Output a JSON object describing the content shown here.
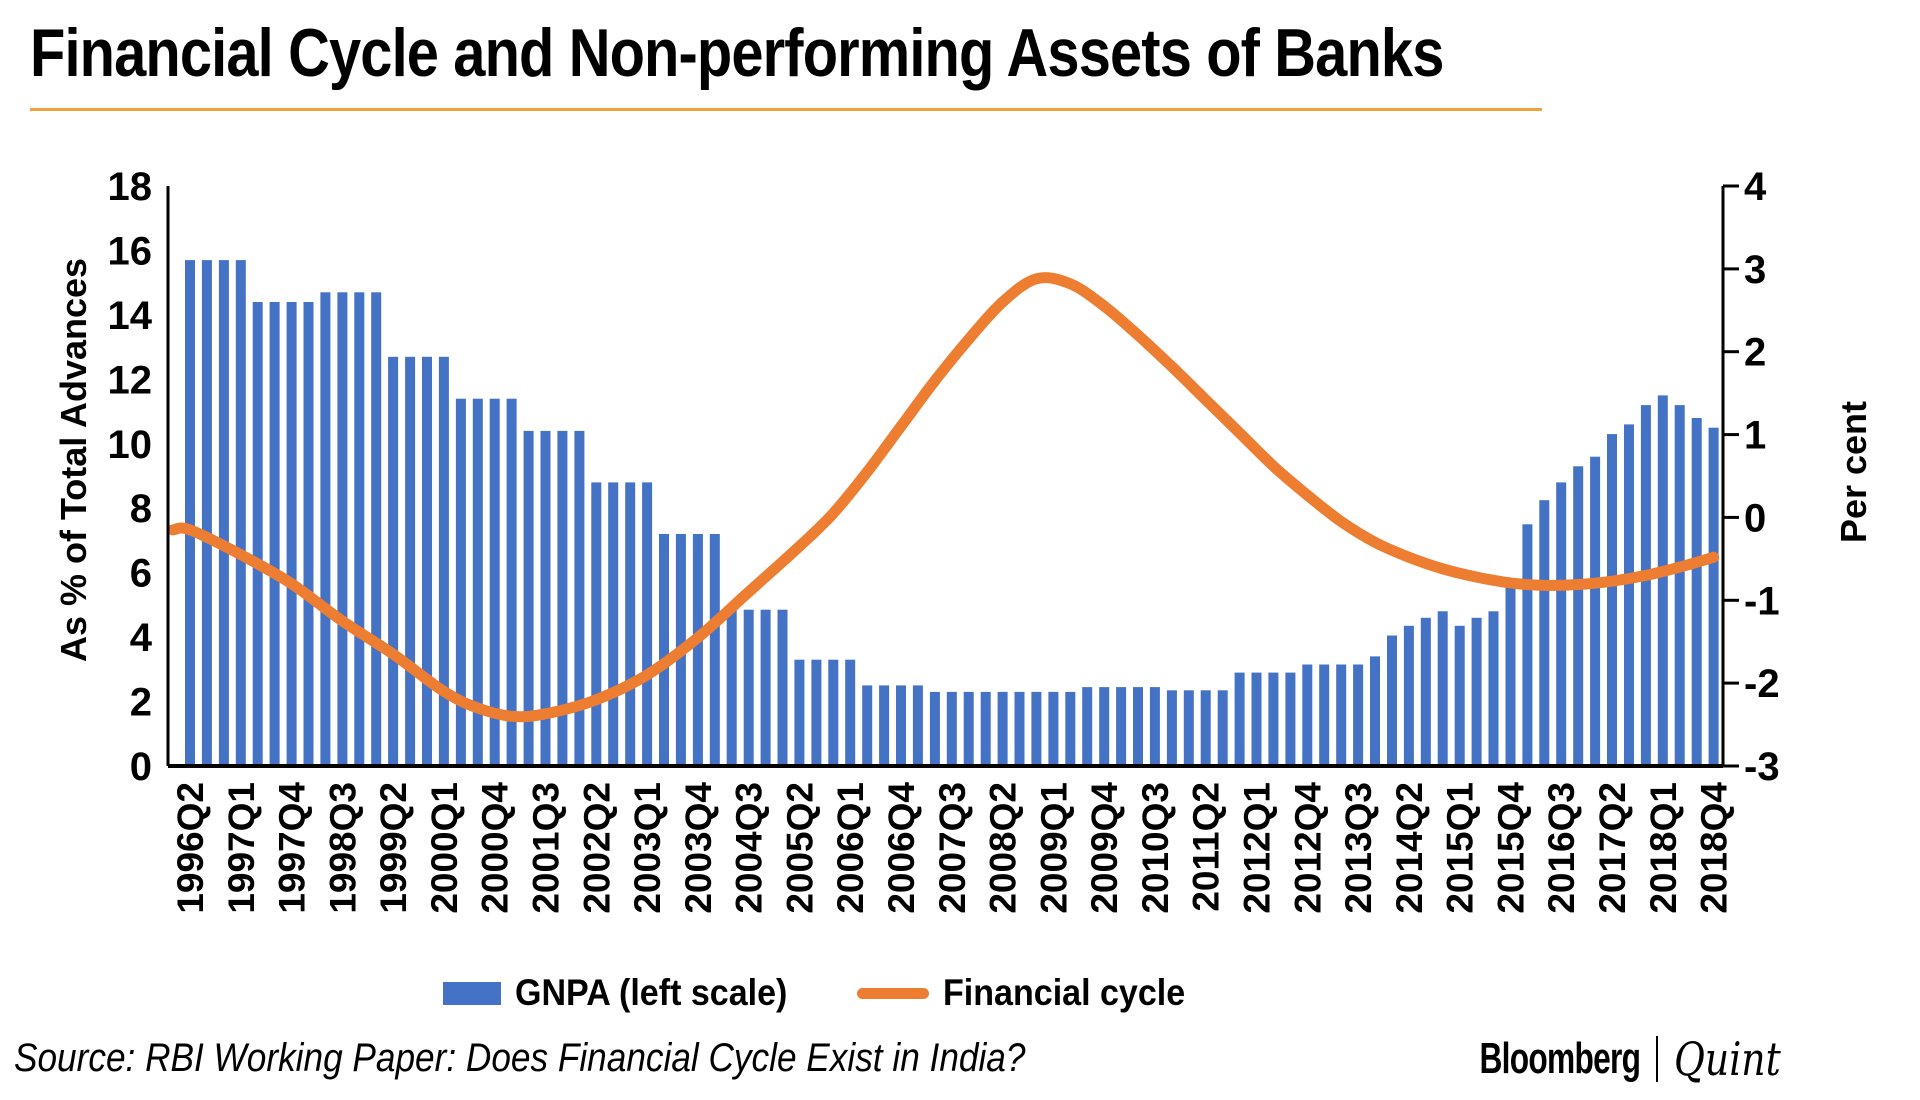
{
  "title": "Financial Cycle and Non-performing Assets of Banks",
  "source": "Source: RBI Working Paper: Does Financial Cycle Exist in India?",
  "branding": {
    "bloomberg": "Bloomberg",
    "quint": "Quint"
  },
  "colors": {
    "bar": "#4472C4",
    "line": "#ED7D31",
    "title_rule": "#F2A43C",
    "axis": "#000000",
    "text": "#000000"
  },
  "legend": [
    {
      "label": "GNPA (left scale)",
      "type": "bar"
    },
    {
      "label": "Financial cycle",
      "type": "line"
    }
  ],
  "chart_data": {
    "type": "bar+line",
    "x_start": "1996Q2",
    "x_tick_labels": [
      "1996Q2",
      "1997Q1",
      "1997Q4",
      "1998Q3",
      "1999Q2",
      "2000Q1",
      "2000Q4",
      "2001Q3",
      "2002Q2",
      "2003Q1",
      "2003Q4",
      "2004Q3",
      "2005Q2",
      "2006Q1",
      "2006Q4",
      "2007Q3",
      "2008Q2",
      "2009Q1",
      "2009Q4",
      "2010Q3",
      "2011Q2",
      "2012Q1",
      "2012Q4",
      "2013Q3",
      "2014Q2",
      "2015Q1",
      "2015Q4",
      "2016Q3",
      "2017Q2",
      "2018Q1",
      "2018Q4"
    ],
    "x_label_every_n_bars": 3,
    "left_axis": {
      "title": "As % of Total Advances",
      "min": 0,
      "max": 18,
      "ticks": [
        0,
        2,
        4,
        6,
        8,
        10,
        12,
        14,
        16,
        18
      ]
    },
    "right_axis": {
      "title": "Per cent",
      "min": -3,
      "max": 4,
      "ticks": [
        4,
        3,
        2,
        1,
        0,
        -1,
        -2,
        -3
      ]
    },
    "grid": false,
    "legend_position": "bottom",
    "series": [
      {
        "name": "GNPA (left scale)",
        "type": "bar",
        "axis": "left",
        "values": [
          15.7,
          15.7,
          15.7,
          15.7,
          14.4,
          14.4,
          14.4,
          14.4,
          14.7,
          14.7,
          14.7,
          14.7,
          12.7,
          12.7,
          12.7,
          12.7,
          11.4,
          11.4,
          11.4,
          11.4,
          10.4,
          10.4,
          10.4,
          10.4,
          8.8,
          8.8,
          8.8,
          8.8,
          7.2,
          7.2,
          7.2,
          7.2,
          4.85,
          4.85,
          4.85,
          4.85,
          3.3,
          3.3,
          3.3,
          3.3,
          2.5,
          2.5,
          2.5,
          2.5,
          2.3,
          2.3,
          2.3,
          2.3,
          2.3,
          2.3,
          2.3,
          2.3,
          2.3,
          2.45,
          2.45,
          2.45,
          2.45,
          2.45,
          2.35,
          2.35,
          2.35,
          2.35,
          2.9,
          2.9,
          2.9,
          2.9,
          3.15,
          3.15,
          3.15,
          3.15,
          3.4,
          4.05,
          4.35,
          4.6,
          4.8,
          4.35,
          4.6,
          4.8,
          5.6,
          7.5,
          8.25,
          8.8,
          9.3,
          9.6,
          10.3,
          10.6,
          11.2,
          11.5,
          11.2,
          10.8,
          10.5
        ]
      },
      {
        "name": "Financial cycle",
        "type": "line",
        "axis": "right",
        "points": [
          [
            0,
            -0.15
          ],
          [
            3,
            -0.45
          ],
          [
            6,
            -0.8
          ],
          [
            9,
            -1.25
          ],
          [
            12,
            -1.65
          ],
          [
            15,
            -2.1
          ],
          [
            17,
            -2.3
          ],
          [
            19,
            -2.4
          ],
          [
            21,
            -2.37
          ],
          [
            24,
            -2.2
          ],
          [
            27,
            -1.9
          ],
          [
            30,
            -1.45
          ],
          [
            33,
            -0.9
          ],
          [
            36,
            -0.35
          ],
          [
            38,
            0.05
          ],
          [
            40,
            0.55
          ],
          [
            42,
            1.1
          ],
          [
            44,
            1.65
          ],
          [
            46,
            2.15
          ],
          [
            48,
            2.6
          ],
          [
            50,
            2.88
          ],
          [
            52,
            2.82
          ],
          [
            54,
            2.55
          ],
          [
            56,
            2.2
          ],
          [
            58,
            1.82
          ],
          [
            60,
            1.42
          ],
          [
            62,
            1.02
          ],
          [
            64,
            0.62
          ],
          [
            66,
            0.27
          ],
          [
            68,
            -0.05
          ],
          [
            70,
            -0.3
          ],
          [
            72,
            -0.48
          ],
          [
            74,
            -0.62
          ],
          [
            76,
            -0.72
          ],
          [
            78,
            -0.79
          ],
          [
            80,
            -0.82
          ],
          [
            82,
            -0.81
          ],
          [
            84,
            -0.77
          ],
          [
            86,
            -0.7
          ],
          [
            88,
            -0.6
          ],
          [
            90,
            -0.48
          ]
        ]
      }
    ]
  }
}
